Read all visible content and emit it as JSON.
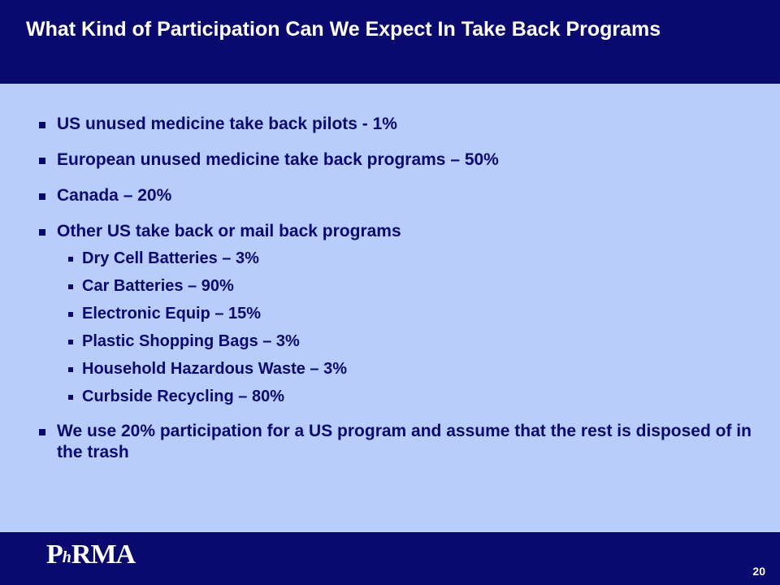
{
  "slide": {
    "title": "What Kind of Participation Can We Expect In Take Back Programs",
    "bullets": [
      {
        "text": "US unused medicine take back pilots - 1%"
      },
      {
        "text": "European unused medicine take back programs – 50%"
      },
      {
        "text": "Canada – 20%"
      },
      {
        "text": "Other US take back or mail back programs",
        "sub": [
          "Dry Cell Batteries – 3%",
          "Car Batteries – 90%",
          "Electronic Equip – 15%",
          "Plastic Shopping Bags – 3%",
          "Household Hazardous Waste – 3%",
          "Curbside Recycling – 80%"
        ]
      },
      {
        "text": "We use 20% participation for a US program and assume that the rest is disposed of in the trash"
      }
    ]
  },
  "footer": {
    "logo_text": "PhRMA",
    "page_number": "20"
  },
  "colors": {
    "navy": "#0a0a6e",
    "content_bg": "#b9cdfd",
    "white": "#ffffff"
  }
}
